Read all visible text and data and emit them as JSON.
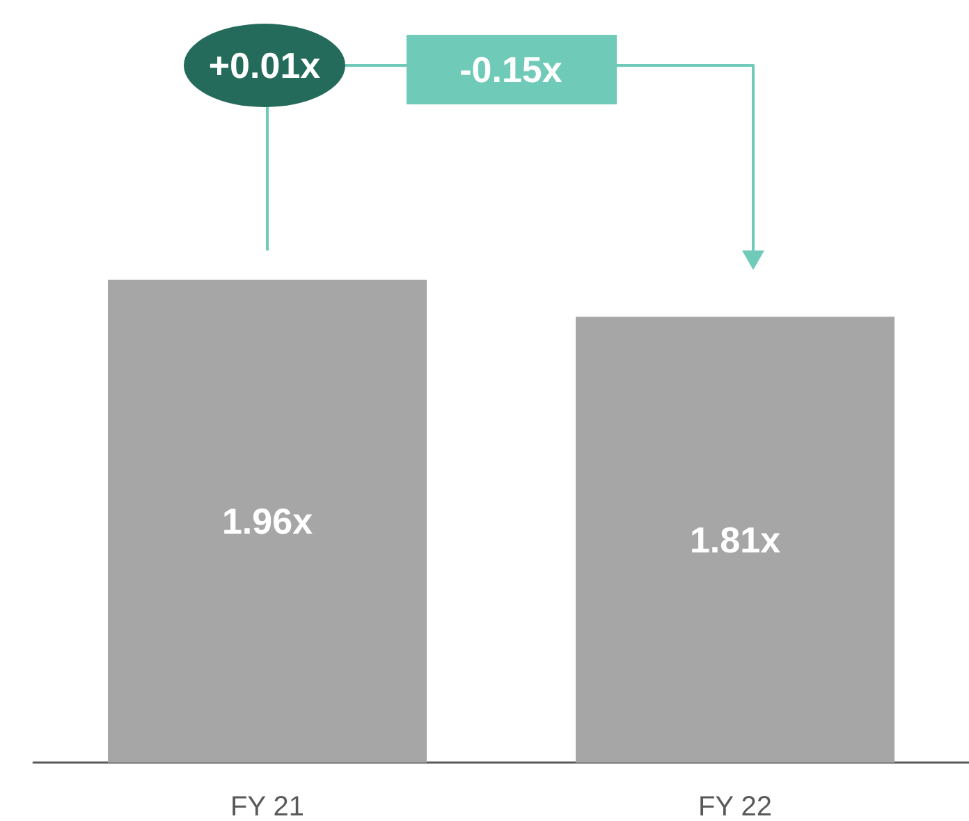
{
  "chart_data": {
    "type": "bar",
    "categories": [
      "FY 21",
      "FY 22"
    ],
    "values": [
      1.96,
      1.81
    ],
    "value_labels": [
      "1.96x",
      "1.81x"
    ],
    "color": "#a6a6a6",
    "annotations": [
      "+0.01x",
      "-0.15x"
    ]
  }
}
